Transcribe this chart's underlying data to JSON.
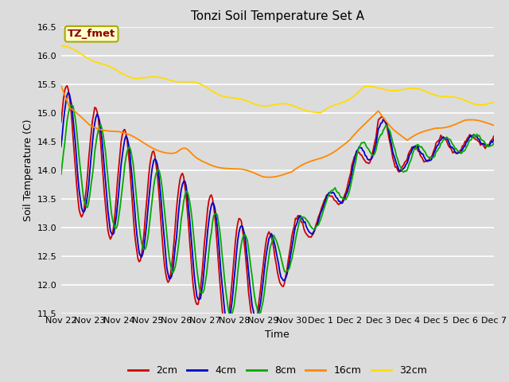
{
  "title": "Tonzi Soil Temperature Set A",
  "xlabel": "Time",
  "ylabel": "Soil Temperature (C)",
  "ylim": [
    11.5,
    16.5
  ],
  "yticks": [
    11.5,
    12.0,
    12.5,
    13.0,
    13.5,
    14.0,
    14.5,
    15.0,
    15.5,
    16.0,
    16.5
  ],
  "background_color": "#dcdcdc",
  "plot_bg_color": "#dcdcdc",
  "annotation_label": "TZ_fmet",
  "annotation_color": "#8b0000",
  "annotation_bg": "#ffffcc",
  "annotation_border": "#aaaa00",
  "colors": {
    "2cm": "#cc0000",
    "4cm": "#0000cc",
    "8cm": "#00aa00",
    "16cm": "#ff8800",
    "32cm": "#ffdd00"
  },
  "x_tick_labels": [
    "Nov 22",
    "Nov 23",
    "Nov 24",
    "Nov 25",
    "Nov 26",
    "Nov 27",
    "Nov 28",
    "Nov 29",
    "Nov 30",
    "Dec 1",
    "Dec 2",
    "Dec 3",
    "Dec 4",
    "Dec 5",
    "Dec 6",
    "Dec 7"
  ],
  "n_days": 15,
  "pts_per_day": 24
}
